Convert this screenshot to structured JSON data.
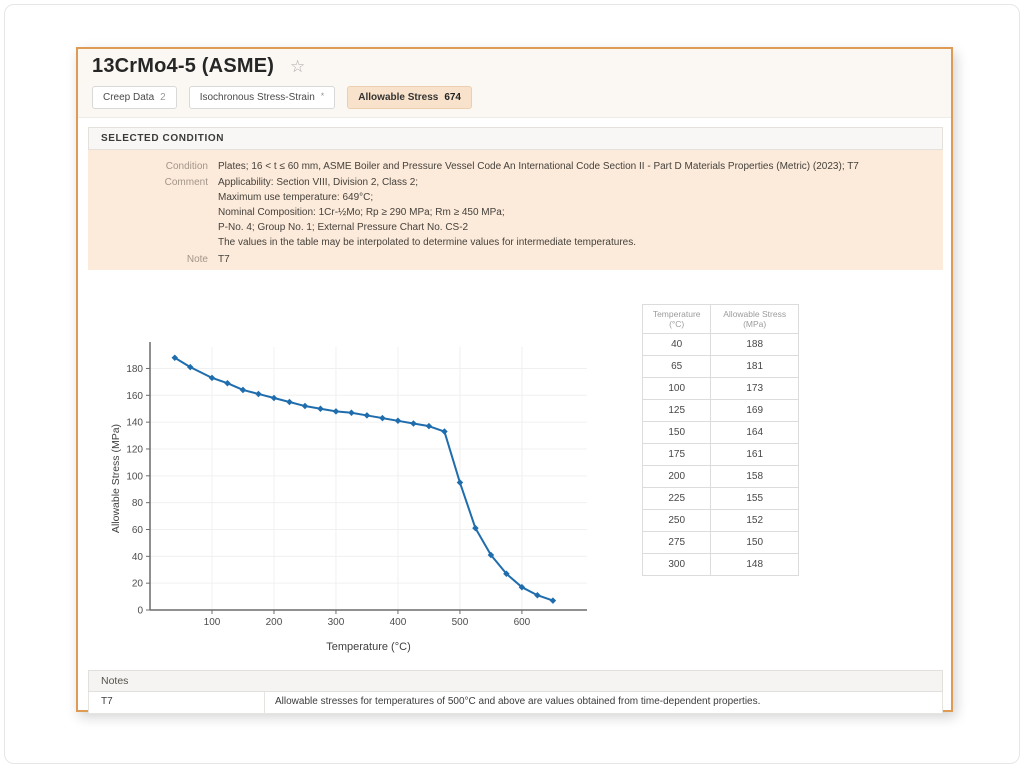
{
  "page": {
    "title": "13CrMo4-5 (ASME)",
    "favorite_icon": "☆",
    "tabs": [
      {
        "label": "Creep Data",
        "badge": "2",
        "active": false
      },
      {
        "label": "Isochronous Stress-Strain",
        "badge": "*",
        "active": false
      },
      {
        "label": "Allowable Stress",
        "badge": "674",
        "active": true
      }
    ]
  },
  "selected_condition": {
    "header": "SELECTED CONDITION",
    "condition_label": "Condition",
    "condition": "Plates; 16 < t ≤ 60 mm, ASME Boiler and Pressure Vessel Code An International Code Section II - Part D Materials Properties (Metric) (2023); T7",
    "comment_label": "Comment",
    "comment_lines": [
      "Applicability: Section VIII, Division 2, Class 2;",
      "Maximum use temperature: 649°C;",
      "Nominal Composition: 1Cr-½Mo; Rp ≥ 290 MPa; Rm ≥ 450 MPa;",
      "P-No. 4; Group No. 1; External Pressure Chart No. CS-2",
      "The values in the table may be interpolated to determine values for intermediate temperatures."
    ],
    "note_label": "Note",
    "note": "T7"
  },
  "chart_data": {
    "type": "line",
    "title": "",
    "xlabel": "Temperature (°C)",
    "ylabel": "Allowable Stress (MPa)",
    "x": [
      40,
      65,
      100,
      125,
      150,
      175,
      200,
      225,
      250,
      275,
      300,
      325,
      350,
      375,
      400,
      425,
      450,
      475,
      500,
      525,
      550,
      575,
      600,
      625,
      650
    ],
    "y": [
      188,
      181,
      173,
      169,
      164,
      161,
      158,
      155,
      152,
      150,
      148,
      147,
      145,
      143,
      141,
      139,
      137,
      133,
      95,
      61,
      41,
      27,
      17,
      11,
      7
    ],
    "xlim": [
      0,
      705
    ],
    "ylim": [
      0,
      196
    ],
    "xticks": [
      100,
      200,
      300,
      400,
      500,
      600
    ],
    "yticks": [
      0,
      20,
      40,
      60,
      80,
      100,
      120,
      140,
      160,
      180
    ],
    "grid": true,
    "legend": false,
    "line_color": "#1f6dad",
    "grid_color": "#f0f0f0",
    "axis_color": "#6b6b6b"
  },
  "side_table": {
    "headers": [
      "Temperature (°C)",
      "Allowable Stress (MPa)"
    ],
    "rows": [
      [
        40,
        188
      ],
      [
        65,
        181
      ],
      [
        100,
        173
      ],
      [
        125,
        169
      ],
      [
        150,
        164
      ],
      [
        175,
        161
      ],
      [
        200,
        158
      ],
      [
        225,
        155
      ],
      [
        250,
        152
      ],
      [
        275,
        150
      ],
      [
        300,
        148
      ]
    ]
  },
  "notes": {
    "header": "Notes",
    "rows": [
      {
        "key": "T7",
        "text": "Allowable stresses for temperatures of 500°C and above are values obtained from time-dependent properties."
      }
    ]
  },
  "colors": {
    "card_border": "#de9b55",
    "active_tab_bg": "#f9e2cb",
    "condition_panel_bg": "#fceadb",
    "chart_line": "#1f6dad"
  }
}
